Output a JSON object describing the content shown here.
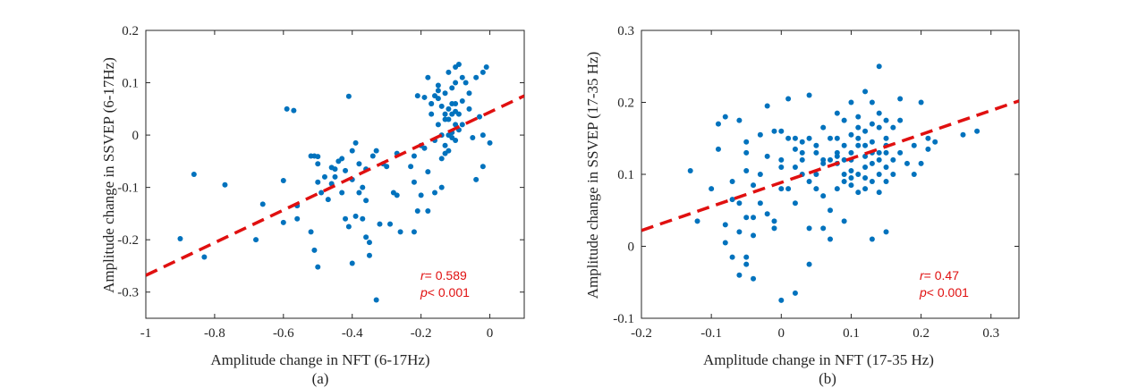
{
  "colors": {
    "points": "#0072bd",
    "fit": "#e01010",
    "axis": "#262626"
  },
  "chart_data": [
    {
      "type": "scatter",
      "caption": "(a)",
      "xlabel": "Amplitude change in NFT (6-17Hz)",
      "ylabel": "Amplitude change in SSVEP (6-17Hz)",
      "xlim": [
        -1,
        0.1
      ],
      "ylim": [
        -0.35,
        0.2
      ],
      "xticks": [
        -1,
        -0.8,
        -0.6,
        -0.4,
        -0.2,
        0
      ],
      "xtick_labels": [
        "-1",
        "-0.8",
        "-0.6",
        "-0.4",
        "-0.2",
        "0"
      ],
      "yticks": [
        -0.3,
        -0.2,
        -0.1,
        0,
        0.1,
        0.2
      ],
      "ytick_labels": [
        "-0.3",
        "-0.2",
        "-0.1",
        "0",
        "0.1",
        "0.2"
      ],
      "fit_line": {
        "x": [
          -1,
          0.1
        ],
        "y": [
          -0.268,
          0.075
        ]
      },
      "stats": {
        "r_label": "r",
        "r_text": "= 0.589",
        "p_label": "p",
        "p_text": "< 0.001"
      },
      "points": [
        [
          -0.9,
          -0.198
        ],
        [
          -0.86,
          -0.075
        ],
        [
          -0.83,
          -0.233
        ],
        [
          -0.77,
          -0.095
        ],
        [
          -0.68,
          -0.2
        ],
        [
          -0.66,
          -0.132
        ],
        [
          -0.6,
          -0.087
        ],
        [
          -0.6,
          -0.167
        ],
        [
          -0.59,
          0.05
        ],
        [
          -0.57,
          0.047
        ],
        [
          -0.56,
          -0.16
        ],
        [
          -0.56,
          -0.135
        ],
        [
          -0.52,
          -0.04
        ],
        [
          -0.52,
          -0.185
        ],
        [
          -0.51,
          -0.04
        ],
        [
          -0.51,
          -0.22
        ],
        [
          -0.5,
          -0.041
        ],
        [
          -0.5,
          -0.055
        ],
        [
          -0.5,
          -0.252
        ],
        [
          -0.49,
          -0.11
        ],
        [
          -0.48,
          -0.08
        ],
        [
          -0.47,
          -0.123
        ],
        [
          -0.46,
          -0.093
        ],
        [
          -0.46,
          -0.062
        ],
        [
          -0.45,
          -0.065
        ],
        [
          -0.44,
          -0.05
        ],
        [
          -0.43,
          -0.045
        ],
        [
          -0.43,
          -0.11
        ],
        [
          -0.42,
          -0.068
        ],
        [
          -0.42,
          -0.16
        ],
        [
          -0.41,
          0.074
        ],
        [
          -0.41,
          -0.175
        ],
        [
          -0.4,
          -0.03
        ],
        [
          -0.4,
          -0.085
        ],
        [
          -0.4,
          -0.245
        ],
        [
          -0.39,
          -0.015
        ],
        [
          -0.39,
          -0.155
        ],
        [
          -0.38,
          -0.055
        ],
        [
          -0.38,
          -0.11
        ],
        [
          -0.37,
          -0.1
        ],
        [
          -0.37,
          -0.16
        ],
        [
          -0.36,
          -0.125
        ],
        [
          -0.36,
          -0.195
        ],
        [
          -0.36,
          -0.065
        ],
        [
          -0.35,
          -0.23
        ],
        [
          -0.35,
          -0.205
        ],
        [
          -0.34,
          -0.04
        ],
        [
          -0.33,
          -0.03
        ],
        [
          -0.33,
          -0.315
        ],
        [
          -0.31,
          -0.055
        ],
        [
          -0.3,
          -0.06
        ],
        [
          -0.29,
          -0.17
        ],
        [
          -0.28,
          -0.11
        ],
        [
          -0.27,
          -0.035
        ],
        [
          -0.26,
          -0.185
        ],
        [
          -0.23,
          -0.06
        ],
        [
          -0.22,
          -0.04
        ],
        [
          -0.22,
          -0.09
        ],
        [
          -0.22,
          -0.185
        ],
        [
          -0.21,
          0.075
        ],
        [
          -0.21,
          -0.145
        ],
        [
          -0.2,
          -0.02
        ],
        [
          -0.2,
          -0.115
        ],
        [
          -0.19,
          -0.025
        ],
        [
          -0.19,
          0.072
        ],
        [
          -0.18,
          0.11
        ],
        [
          -0.18,
          -0.07
        ],
        [
          -0.18,
          -0.145
        ],
        [
          -0.17,
          0.04
        ],
        [
          -0.17,
          0.06
        ],
        [
          -0.16,
          0.075
        ],
        [
          -0.16,
          -0.01
        ],
        [
          -0.16,
          -0.11
        ],
        [
          -0.15,
          0.02
        ],
        [
          -0.15,
          0.07
        ],
        [
          -0.15,
          0.095
        ],
        [
          -0.14,
          0.055
        ],
        [
          -0.14,
          0.0
        ],
        [
          -0.14,
          -0.1
        ],
        [
          -0.14,
          -0.045
        ],
        [
          -0.13,
          0.03
        ],
        [
          -0.13,
          0.04
        ],
        [
          -0.13,
          0.08
        ],
        [
          -0.13,
          -0.02
        ],
        [
          -0.13,
          -0.035
        ],
        [
          -0.12,
          0.05
        ],
        [
          -0.12,
          0.12
        ],
        [
          -0.12,
          0.03
        ],
        [
          -0.12,
          -0.03
        ],
        [
          -0.12,
          0.0
        ],
        [
          -0.11,
          0.04
        ],
        [
          -0.11,
          0.09
        ],
        [
          -0.11,
          -0.005
        ],
        [
          -0.11,
          0.005
        ],
        [
          -0.1,
          0.1
        ],
        [
          -0.1,
          0.06
        ],
        [
          -0.1,
          0.045
        ],
        [
          -0.1,
          0.13
        ],
        [
          -0.1,
          0.02
        ],
        [
          -0.1,
          -0.01
        ],
        [
          -0.09,
          0.135
        ],
        [
          -0.09,
          0.04
        ],
        [
          -0.09,
          0.01
        ],
        [
          -0.08,
          0.11
        ],
        [
          -0.08,
          0.02
        ],
        [
          -0.08,
          0.065
        ],
        [
          -0.07,
          0.1
        ],
        [
          -0.06,
          0.05
        ],
        [
          -0.05,
          -0.005
        ],
        [
          -0.04,
          0.11
        ],
        [
          -0.04,
          -0.085
        ],
        [
          -0.03,
          0.035
        ],
        [
          -0.02,
          0.12
        ],
        [
          -0.02,
          0.0
        ],
        [
          -0.02,
          -0.06
        ],
        [
          -0.01,
          0.13
        ],
        [
          0.0,
          -0.015
        ],
        [
          -0.32,
          -0.17
        ],
        [
          -0.45,
          -0.08
        ],
        [
          -0.5,
          -0.09
        ],
        [
          -0.27,
          -0.115
        ],
        [
          -0.17,
          0.06
        ],
        [
          -0.15,
          0.085
        ],
        [
          -0.11,
          0.06
        ],
        [
          -0.06,
          0.08
        ]
      ]
    },
    {
      "type": "scatter",
      "caption": "(b)",
      "xlabel": "Amplitude change in NFT (17-35 Hz)",
      "ylabel": "Amplitude change in SSVEP (17-35 Hz)",
      "xlim": [
        -0.2,
        0.34
      ],
      "ylim": [
        -0.1,
        0.3
      ],
      "xticks": [
        -0.2,
        -0.1,
        0,
        0.1,
        0.2,
        0.3
      ],
      "xtick_labels": [
        "-0.2",
        "-0.1",
        "0",
        "0.1",
        "0.2",
        "0.3"
      ],
      "yticks": [
        -0.1,
        0,
        0.1,
        0.2,
        0.3
      ],
      "ytick_labels": [
        "-0.1",
        "0",
        "0.1",
        "0.2",
        "0.3"
      ],
      "fit_line": {
        "x": [
          -0.2,
          0.34
        ],
        "y": [
          0.022,
          0.202
        ]
      },
      "stats": {
        "r_label": "r",
        "r_text": "= 0.47",
        "p_label": "p",
        "p_text": "< 0.001"
      },
      "points": [
        [
          -0.13,
          0.105
        ],
        [
          -0.12,
          0.035
        ],
        [
          -0.1,
          0.08
        ],
        [
          -0.09,
          0.17
        ],
        [
          -0.09,
          0.135
        ],
        [
          -0.08,
          0.18
        ],
        [
          -0.08,
          0.005
        ],
        [
          -0.08,
          0.03
        ],
        [
          -0.07,
          0.09
        ],
        [
          -0.07,
          -0.015
        ],
        [
          -0.07,
          0.065
        ],
        [
          -0.06,
          0.175
        ],
        [
          -0.06,
          0.06
        ],
        [
          -0.06,
          -0.04
        ],
        [
          -0.06,
          0.02
        ],
        [
          -0.05,
          0.145
        ],
        [
          -0.05,
          0.13
        ],
        [
          -0.05,
          0.105
        ],
        [
          -0.05,
          0.04
        ],
        [
          -0.05,
          -0.015
        ],
        [
          -0.05,
          -0.025
        ],
        [
          -0.04,
          0.085
        ],
        [
          -0.04,
          -0.045
        ],
        [
          -0.04,
          0.04
        ],
        [
          -0.04,
          0.015
        ],
        [
          -0.03,
          0.155
        ],
        [
          -0.03,
          0.1
        ],
        [
          -0.03,
          0.06
        ],
        [
          -0.02,
          0.195
        ],
        [
          -0.02,
          0.125
        ],
        [
          -0.02,
          0.045
        ],
        [
          -0.01,
          0.16
        ],
        [
          -0.01,
          0.035
        ],
        [
          -0.01,
          0.025
        ],
        [
          0.0,
          0.16
        ],
        [
          0.0,
          0.12
        ],
        [
          0.0,
          0.11
        ],
        [
          0.0,
          -0.075
        ],
        [
          0.0,
          0.08
        ],
        [
          0.01,
          0.15
        ],
        [
          0.01,
          0.08
        ],
        [
          0.01,
          0.205
        ],
        [
          0.02,
          0.15
        ],
        [
          0.02,
          0.11
        ],
        [
          0.02,
          -0.065
        ],
        [
          0.02,
          0.06
        ],
        [
          0.03,
          0.145
        ],
        [
          0.03,
          0.13
        ],
        [
          0.03,
          0.1
        ],
        [
          0.04,
          0.21
        ],
        [
          0.04,
          0.09
        ],
        [
          0.04,
          0.15
        ],
        [
          0.04,
          -0.025
        ],
        [
          0.04,
          0.025
        ],
        [
          0.05,
          0.13
        ],
        [
          0.05,
          0.14
        ],
        [
          0.05,
          0.08
        ],
        [
          0.06,
          0.12
        ],
        [
          0.06,
          0.07
        ],
        [
          0.06,
          0.025
        ],
        [
          0.06,
          0.165
        ],
        [
          0.07,
          0.12
        ],
        [
          0.07,
          0.15
        ],
        [
          0.07,
          0.05
        ],
        [
          0.07,
          0.01
        ],
        [
          0.08,
          0.185
        ],
        [
          0.08,
          0.13
        ],
        [
          0.08,
          0.08
        ],
        [
          0.08,
          0.15
        ],
        [
          0.08,
          0.115
        ],
        [
          0.09,
          0.175
        ],
        [
          0.09,
          0.1
        ],
        [
          0.09,
          0.09
        ],
        [
          0.09,
          0.035
        ],
        [
          0.09,
          0.12
        ],
        [
          0.1,
          0.2
        ],
        [
          0.1,
          0.155
        ],
        [
          0.1,
          0.13
        ],
        [
          0.1,
          0.105
        ],
        [
          0.1,
          0.085
        ],
        [
          0.1,
          0.12
        ],
        [
          0.11,
          0.18
        ],
        [
          0.11,
          0.14
        ],
        [
          0.11,
          0.1
        ],
        [
          0.11,
          0.075
        ],
        [
          0.11,
          0.165
        ],
        [
          0.12,
          0.215
        ],
        [
          0.12,
          0.16
        ],
        [
          0.12,
          0.125
        ],
        [
          0.12,
          0.095
        ],
        [
          0.12,
          0.08
        ],
        [
          0.12,
          0.14
        ],
        [
          0.13,
          0.2
        ],
        [
          0.13,
          0.145
        ],
        [
          0.13,
          0.115
        ],
        [
          0.13,
          0.09
        ],
        [
          0.13,
          0.01
        ],
        [
          0.13,
          0.17
        ],
        [
          0.14,
          0.185
        ],
        [
          0.14,
          0.13
        ],
        [
          0.14,
          0.1
        ],
        [
          0.14,
          0.12
        ],
        [
          0.14,
          0.075
        ],
        [
          0.14,
          0.25
        ],
        [
          0.15,
          0.175
        ],
        [
          0.15,
          0.14
        ],
        [
          0.15,
          0.11
        ],
        [
          0.15,
          0.09
        ],
        [
          0.15,
          0.02
        ],
        [
          0.15,
          0.15
        ],
        [
          0.16,
          0.165
        ],
        [
          0.16,
          0.12
        ],
        [
          0.16,
          0.1
        ],
        [
          0.17,
          0.205
        ],
        [
          0.17,
          0.175
        ],
        [
          0.17,
          0.13
        ],
        [
          0.18,
          0.115
        ],
        [
          0.19,
          0.14
        ],
        [
          0.19,
          0.1
        ],
        [
          0.2,
          0.2
        ],
        [
          0.2,
          0.115
        ],
        [
          0.21,
          0.15
        ],
        [
          0.21,
          0.135
        ],
        [
          0.22,
          0.145
        ],
        [
          0.26,
          0.155
        ],
        [
          0.28,
          0.16
        ],
        [
          0.02,
          0.135
        ],
        [
          0.05,
          0.1
        ],
        [
          0.08,
          0.125
        ],
        [
          0.11,
          0.15
        ],
        [
          0.13,
          0.13
        ],
        [
          0.09,
          0.14
        ],
        [
          0.12,
          0.11
        ],
        [
          0.15,
          0.13
        ],
        [
          0.1,
          0.095
        ],
        [
          0.06,
          0.115
        ],
        [
          0.03,
          0.12
        ],
        [
          0.14,
          0.165
        ]
      ]
    }
  ]
}
